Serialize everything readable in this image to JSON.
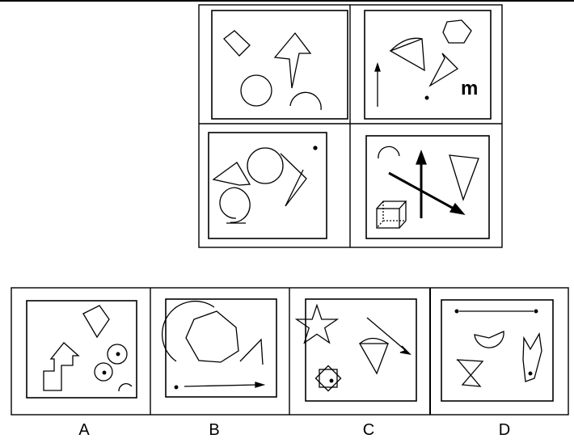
{
  "question_grid": {
    "panels": [
      {
        "id": "top-left"
      },
      {
        "id": "top-right",
        "glyph_text": "m"
      },
      {
        "id": "bottom-left"
      },
      {
        "id": "bottom-right"
      }
    ]
  },
  "options": {
    "a_label": "A",
    "b_label": "B",
    "c_label": "C",
    "d_label": "D"
  },
  "colors": {
    "ink": "#000000",
    "background": "#ffffff"
  }
}
